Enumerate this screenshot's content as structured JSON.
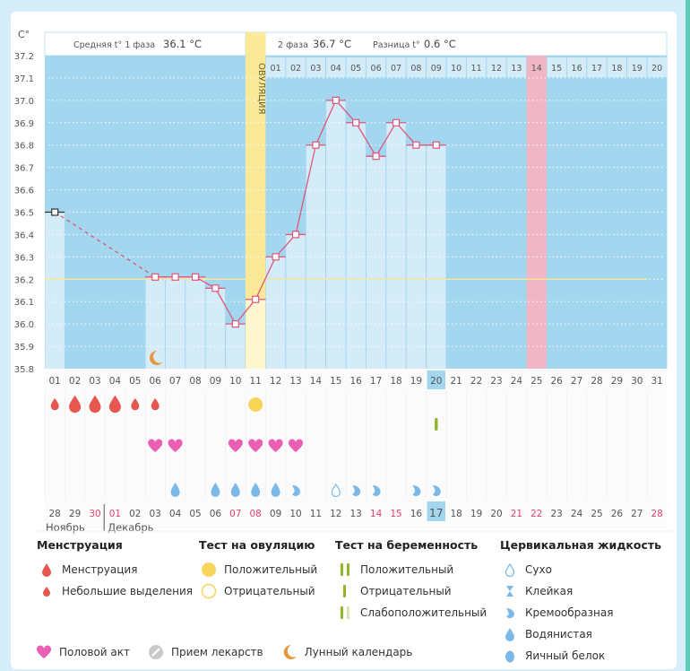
{
  "unit_label": "C°",
  "phase_bar": {
    "phase1_label": "Средняя t° 1 фаза",
    "phase1_value": "36.1 °C",
    "phase2_label": "2 фаза",
    "phase2_value": "36.7 °C",
    "diff_label": "Разница t°",
    "diff_value": "0.6 °C",
    "ovulation_label": "ОВУЛЯЦИЯ"
  },
  "colors": {
    "plot_bg": "#a3d6ef",
    "bar": "#d3ecf8",
    "ovulation": "#fbe99a",
    "highlight": "#f1b6c6",
    "line": "#e0577b",
    "coverline": "#f4e89a",
    "menstruation": "#e85650",
    "heart": "#ea5fb4",
    "fluid": "#7cb9e8",
    "pregnancy_test": "#8db62a",
    "moon": "#e9963a",
    "ovulation_test": "#f7d45a"
  },
  "chart_data": {
    "type": "line",
    "title": "",
    "ylabel": "C°",
    "ylim": [
      35.8,
      37.2
    ],
    "yticks": [
      "35.8",
      "35.9",
      "36.0",
      "36.1",
      "36.2",
      "36.3",
      "36.4",
      "36.5",
      "36.6",
      "36.7",
      "36.8",
      "36.9",
      "37.0",
      "37.1",
      "37.2"
    ],
    "coverline": 36.2,
    "days": [
      "01",
      "02",
      "03",
      "04",
      "05",
      "06",
      "07",
      "08",
      "09",
      "10",
      "11",
      "12",
      "13",
      "14",
      "15",
      "16",
      "17",
      "18",
      "19",
      "20",
      "21",
      "22",
      "23",
      "24",
      "25",
      "26",
      "27",
      "28",
      "29",
      "30",
      "31"
    ],
    "cycle_day_labels": [
      "01",
      "02",
      "03",
      "04",
      "05",
      "06",
      "07",
      "08",
      "09",
      "10",
      "11",
      "12",
      "13",
      "14",
      "15",
      "16",
      "17",
      "18",
      "19",
      "20"
    ],
    "cycle_day_highlight": "14",
    "ovulation_day": "11",
    "highlight_day": "25",
    "today_day": "20",
    "temperatures": [
      {
        "day": 1,
        "value": 36.5,
        "first": true
      },
      {
        "day": 6,
        "value": 36.21
      },
      {
        "day": 7,
        "value": 36.21
      },
      {
        "day": 8,
        "value": 36.21
      },
      {
        "day": 9,
        "value": 36.16
      },
      {
        "day": 10,
        "value": 36.0
      },
      {
        "day": 11,
        "value": 36.11
      },
      {
        "day": 12,
        "value": 36.3
      },
      {
        "day": 13,
        "value": 36.4
      },
      {
        "day": 14,
        "value": 36.8
      },
      {
        "day": 15,
        "value": 37.0
      },
      {
        "day": 16,
        "value": 36.9
      },
      {
        "day": 17,
        "value": 36.75
      },
      {
        "day": 18,
        "value": 36.9
      },
      {
        "day": 19,
        "value": 36.8
      },
      {
        "day": 20,
        "value": 36.8
      }
    ],
    "dashed_segment": [
      1,
      6
    ],
    "moon_day": 6,
    "markers": {
      "menstruation": [
        {
          "day": 1,
          "size": "small"
        },
        {
          "day": 2,
          "size": "large"
        },
        {
          "day": 3,
          "size": "large"
        },
        {
          "day": 4,
          "size": "large"
        },
        {
          "day": 5,
          "size": "small"
        },
        {
          "day": 6,
          "size": "small"
        }
      ],
      "ovulation_test_positive": [
        11
      ],
      "pregnancy_test_negative": [
        20
      ],
      "intercourse": [
        6,
        7,
        10,
        11,
        12,
        13
      ],
      "cervical_fluid": [
        {
          "day": 7,
          "type": "watery"
        },
        {
          "day": 9,
          "type": "watery"
        },
        {
          "day": 10,
          "type": "watery"
        },
        {
          "day": 11,
          "type": "watery"
        },
        {
          "day": 12,
          "type": "watery"
        },
        {
          "day": 13,
          "type": "creamy"
        },
        {
          "day": 15,
          "type": "dry"
        },
        {
          "day": 16,
          "type": "creamy"
        },
        {
          "day": 17,
          "type": "creamy"
        },
        {
          "day": 19,
          "type": "creamy"
        },
        {
          "day": 20,
          "type": "creamy"
        }
      ]
    },
    "calendar_dates": [
      {
        "d": "28"
      },
      {
        "d": "29"
      },
      {
        "d": "30",
        "weekend": true
      },
      {
        "d": "01",
        "weekend": true
      },
      {
        "d": "02"
      },
      {
        "d": "03"
      },
      {
        "d": "04"
      },
      {
        "d": "05"
      },
      {
        "d": "06"
      },
      {
        "d": "07",
        "weekend": true
      },
      {
        "d": "08",
        "weekend": true
      },
      {
        "d": "09"
      },
      {
        "d": "10"
      },
      {
        "d": "11"
      },
      {
        "d": "12"
      },
      {
        "d": "13"
      },
      {
        "d": "14",
        "weekend": true
      },
      {
        "d": "15",
        "weekend": true
      },
      {
        "d": "16"
      },
      {
        "d": "17",
        "today": true
      },
      {
        "d": "18"
      },
      {
        "d": "19"
      },
      {
        "d": "20"
      },
      {
        "d": "21",
        "weekend": true
      },
      {
        "d": "22",
        "weekend": true
      },
      {
        "d": "23"
      },
      {
        "d": "24"
      },
      {
        "d": "25"
      },
      {
        "d": "26"
      },
      {
        "d": "27"
      },
      {
        "d": "28",
        "weekend": true
      }
    ],
    "months": [
      {
        "label": "Ноябрь",
        "start": 1
      },
      {
        "label": "Декабрь",
        "start": 4
      }
    ]
  },
  "legend": {
    "menstruation": {
      "title": "Менструация",
      "items": [
        "Менструация",
        "Небольшие выделения"
      ]
    },
    "ovulation_test": {
      "title": "Тест на овуляцию",
      "items": [
        "Положительный",
        "Отрицательный"
      ]
    },
    "pregnancy_test": {
      "title": "Тест на беременность",
      "items": [
        "Положительный",
        "Отрицательный",
        "Слабоположительный"
      ]
    },
    "cervical_fluid": {
      "title": "Цервикальная жидкость",
      "items": [
        "Сухо",
        "Клейкая",
        "Кремообразная",
        "Водянистая",
        "Яичный белок"
      ]
    },
    "bottom": [
      "Половой акт",
      "Прием лекарств",
      "Лунный календарь"
    ]
  }
}
